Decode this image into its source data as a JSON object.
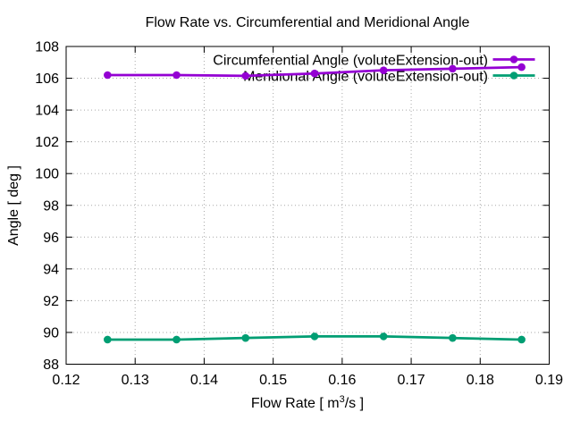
{
  "figure": {
    "background": "#ffffff"
  },
  "chart_data": {
    "type": "line",
    "title": "Flow Rate vs. Circumferential and Meridional Angle",
    "xlabel": "Flow Rate [ m^3/s ]",
    "xlabel_parts": {
      "pre": "Flow Rate [ m",
      "sup": "3",
      "post": "/s ]"
    },
    "ylabel": "Angle [ deg ]",
    "x_axis": {
      "min": 0.12,
      "max": 0.19,
      "step": 0.01,
      "decimals": 2
    },
    "y_axis": {
      "min": 88,
      "max": 108,
      "step": 2,
      "decimals": 0
    },
    "grid": true,
    "legend_position": "top-right-inside",
    "x": [
      0.126,
      0.136,
      0.146,
      0.156,
      0.166,
      0.176,
      0.186
    ],
    "series": [
      {
        "name": "Circumferential Angle (voluteExtension-out)",
        "color": "#9400d3",
        "marker": "filled-circle",
        "values": [
          106.2,
          106.2,
          106.15,
          106.3,
          106.5,
          106.6,
          106.7
        ]
      },
      {
        "name": "Meridional Angle (voluteExtension-out)",
        "color": "#009e73",
        "marker": "filled-circle",
        "values": [
          89.55,
          89.55,
          89.65,
          89.75,
          89.75,
          89.65,
          89.55
        ]
      }
    ],
    "grid_color": "#a8a8a8",
    "axis_color": "#000000",
    "text_color": "#000000"
  }
}
